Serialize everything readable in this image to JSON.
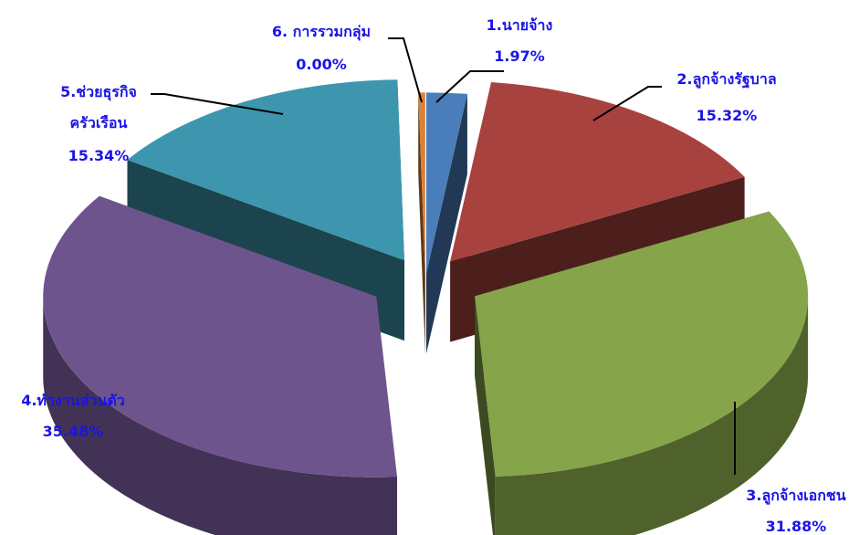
{
  "chart_data": {
    "type": "pie",
    "title": "",
    "categories": [
      "1.นายจ้าง",
      "2.ลูกจ้างรัฐบาล",
      "3.ลูกจ้างเอกชน",
      "4.ทำงานส่วนตัว",
      "5.ช่วยธุรกิจครัวเรือน",
      "6. การรวมกลุ่ม"
    ],
    "values": [
      1.97,
      15.32,
      31.88,
      35.48,
      15.34,
      0.0
    ],
    "value_labels": [
      "1.97%",
      "15.32%",
      "31.88%",
      "35.48%",
      "15.34%",
      "0.00%"
    ],
    "label_lines": [
      [
        "1.นายจ้าง",
        "1.97%"
      ],
      [
        "2.ลูกจ้างรัฐบาล",
        "15.32%"
      ],
      [
        "3.ลูกจ้างเอกชน",
        "31.88%"
      ],
      [
        "4.ทำงานส่วนตัว",
        "35.48%"
      ],
      [
        "5.ช่วยธุรกิจ",
        "ครัวเรือน",
        "15.34%"
      ],
      [
        "6. การรวมกลุ่ม",
        "0.00%"
      ]
    ],
    "colors": [
      "#4a7ebb",
      "#a8423f",
      "#86a44a",
      "#6e548d",
      "#3d96ae",
      "#da8137"
    ],
    "label_color": "#1a14e6",
    "style": "3d-exploded",
    "legend": "none"
  }
}
